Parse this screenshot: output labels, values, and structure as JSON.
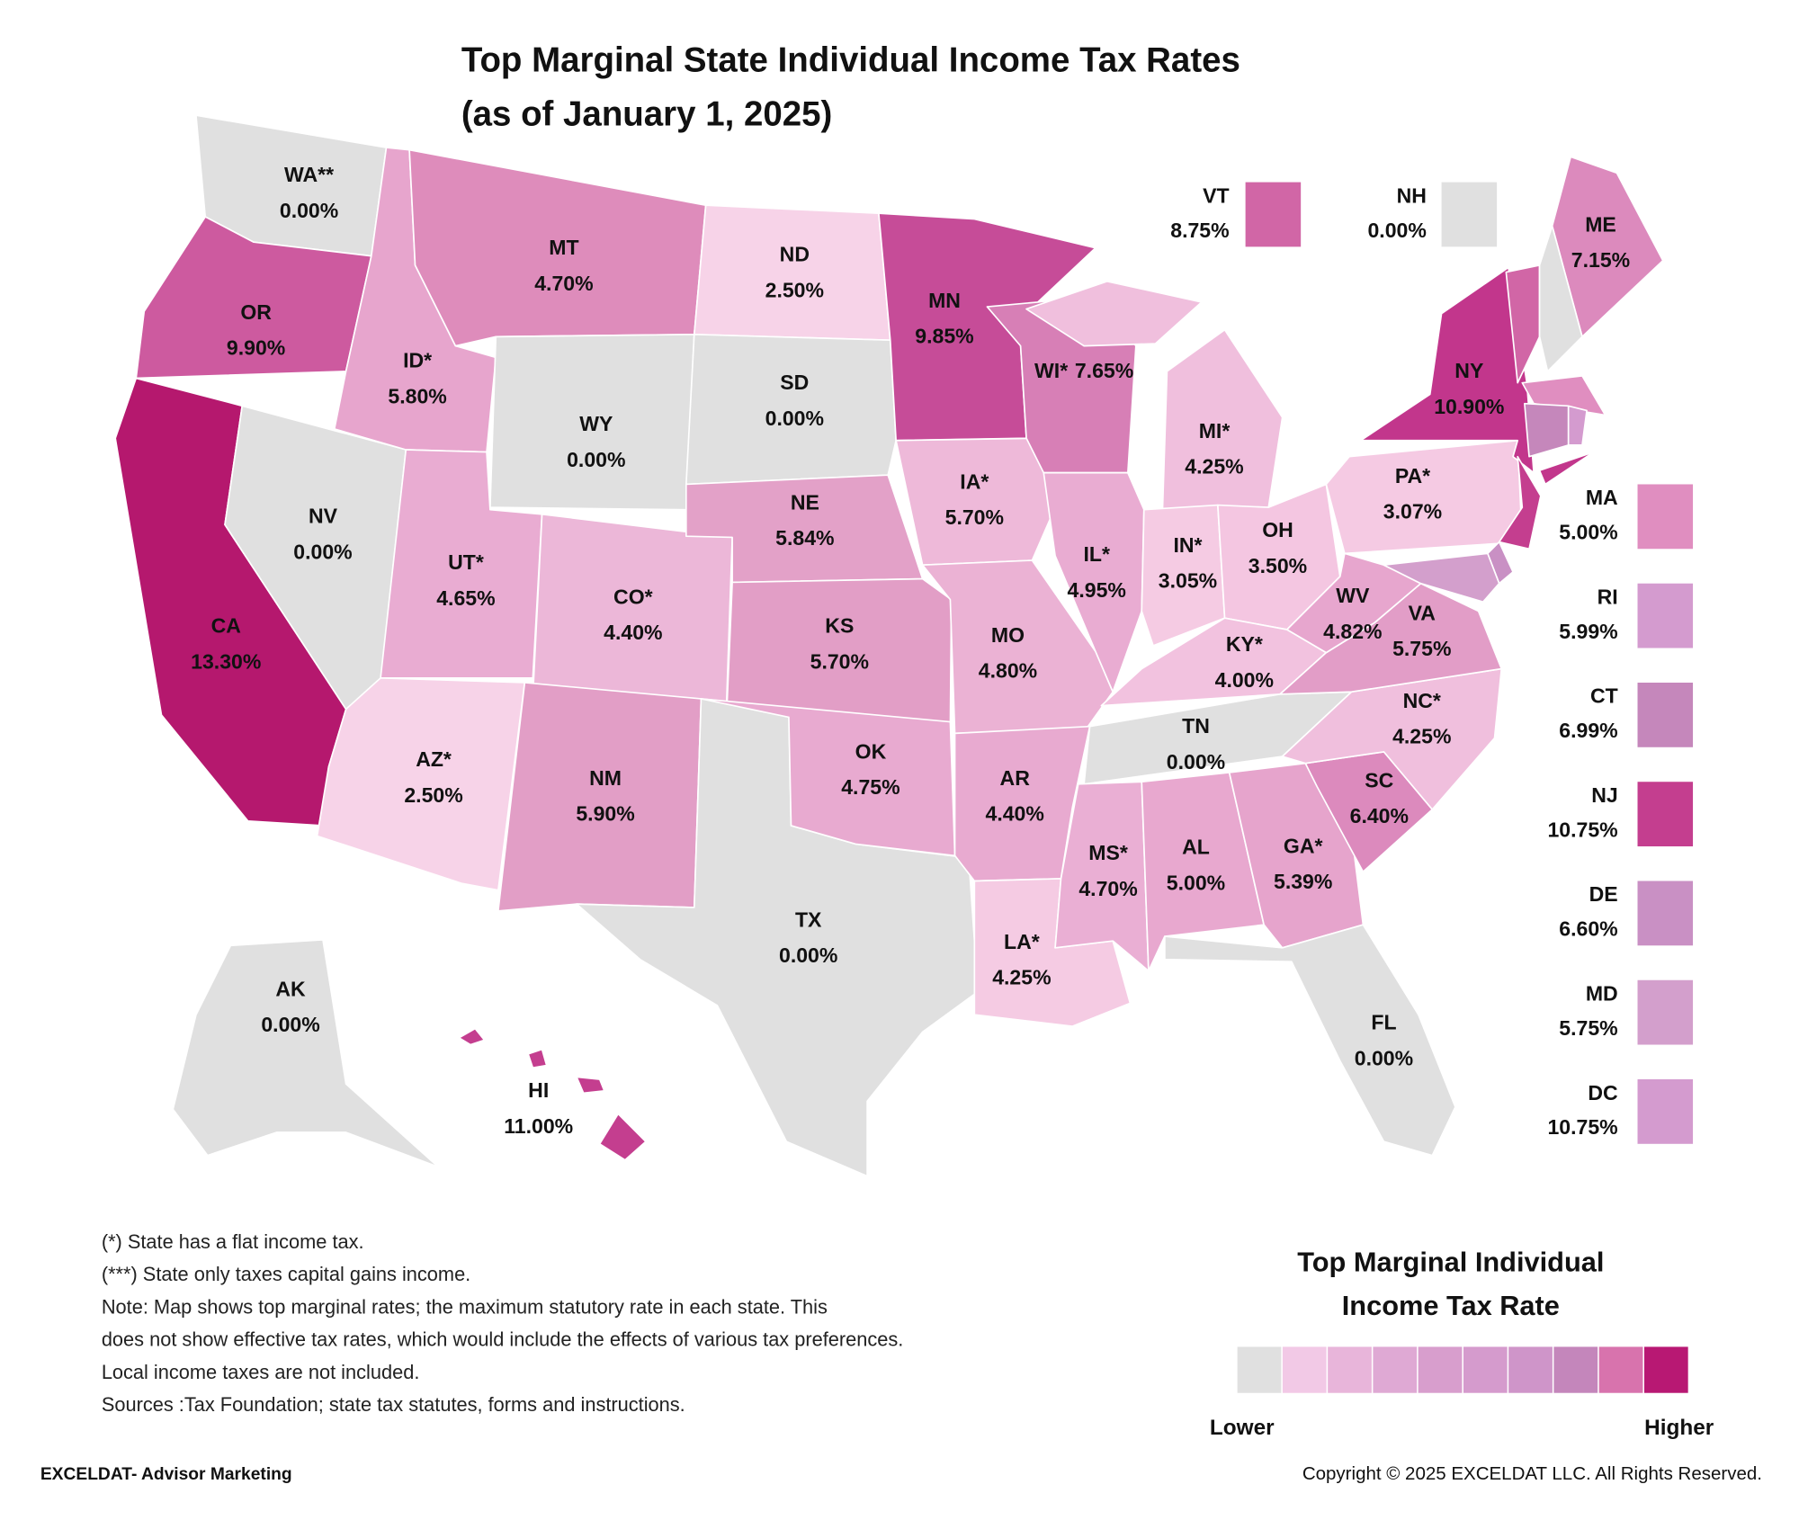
{
  "title": "Top Marginal State Individual Income Tax Rates",
  "subtitle": "(as of January 1, 2025)",
  "states": [
    {
      "abbr": "WA**",
      "value": 0,
      "label": "0.00%",
      "color": "#e0e0e0"
    },
    {
      "abbr": "OR",
      "value": 9.9,
      "label": "9.90%",
      "color": "#cd5a9f"
    },
    {
      "abbr": "CA",
      "value": 13.3,
      "label": "13.30%",
      "color": "#b5186e"
    },
    {
      "abbr": "NV",
      "value": 0,
      "label": "0.00%",
      "color": "#e0e0e0"
    },
    {
      "abbr": "ID*",
      "value": 5.8,
      "label": "5.80%",
      "color": "#e7a5cd"
    },
    {
      "abbr": "MT",
      "value": 4.7,
      "label": "4.70%",
      "color": "#de8cbb"
    },
    {
      "abbr": "WY",
      "value": 0,
      "label": "0.00%",
      "color": "#e0e0e0"
    },
    {
      "abbr": "ND",
      "value": 2.5,
      "label": "2.50%",
      "color": "#f7d3e8"
    },
    {
      "abbr": "SD",
      "value": 0,
      "label": "0.00%",
      "color": "#e0e0e0"
    },
    {
      "abbr": "UT*",
      "value": 4.65,
      "label": "4.65%",
      "color": "#e9acd2"
    },
    {
      "abbr": "CO*",
      "value": 4.4,
      "label": "4.40%",
      "color": "#ecb7d8"
    },
    {
      "abbr": "NE",
      "value": 5.84,
      "label": "5.84%",
      "color": "#e3a1c8"
    },
    {
      "abbr": "KS",
      "value": 5.7,
      "label": "5.70%",
      "color": "#e29ec6"
    },
    {
      "abbr": "AZ*",
      "value": 2.5,
      "label": "2.50%",
      "color": "#f7d3e8"
    },
    {
      "abbr": "NM",
      "value": 5.9,
      "label": "5.90%",
      "color": "#e29ec6"
    },
    {
      "abbr": "TX",
      "value": 0,
      "label": "0.00%",
      "color": "#e0e0e0"
    },
    {
      "abbr": "OK",
      "value": 4.75,
      "label": "4.75%",
      "color": "#e8aad0"
    },
    {
      "abbr": "MN",
      "value": 9.85,
      "label": "9.85%",
      "color": "#c64c98"
    },
    {
      "abbr": "IA*",
      "value": 5.7,
      "label": "5.70%",
      "color": "#eeb9d9"
    },
    {
      "abbr": "MO",
      "value": 4.8,
      "label": "4.80%",
      "color": "#ebb2d4"
    },
    {
      "abbr": "AR",
      "value": 4.4,
      "label": "4.40%",
      "color": "#e8aad0"
    },
    {
      "abbr": "LA*",
      "value": 4.25,
      "label": "4.25%",
      "color": "#f5cbe3"
    },
    {
      "abbr": "WI*",
      "value": 7.65,
      "label": "7.65%",
      "color": "#d77fb6"
    },
    {
      "abbr": "IL*",
      "value": 4.95,
      "label": "4.95%",
      "color": "#e9acd2"
    },
    {
      "abbr": "MI*",
      "value": 4.25,
      "label": "4.25%",
      "color": "#f0bfdd"
    },
    {
      "abbr": "IN*",
      "value": 3.05,
      "label": "3.05%",
      "color": "#f5cbe3"
    },
    {
      "abbr": "OH",
      "value": 3.5,
      "label": "3.50%",
      "color": "#f4c6e1"
    },
    {
      "abbr": "KY*",
      "value": 4,
      "label": "4.00%",
      "color": "#f2c2df"
    },
    {
      "abbr": "TN",
      "value": 0,
      "label": "0.00%",
      "color": "#e0e0e0"
    },
    {
      "abbr": "MS*",
      "value": 4.7,
      "label": "4.70%",
      "color": "#eaafd4"
    },
    {
      "abbr": "AL",
      "value": 5,
      "label": "5.00%",
      "color": "#e8a8cf"
    },
    {
      "abbr": "GA*",
      "value": 5.39,
      "label": "5.39%",
      "color": "#e6a4cc"
    },
    {
      "abbr": "FL",
      "value": 0,
      "label": "0.00%",
      "color": "#e0e0e0"
    },
    {
      "abbr": "SC",
      "value": 6.4,
      "label": "6.40%",
      "color": "#dc8abd"
    },
    {
      "abbr": "NC*",
      "value": 4.25,
      "label": "4.25%",
      "color": "#f0bfdd"
    },
    {
      "abbr": "VA",
      "value": 5.75,
      "label": "5.75%",
      "color": "#e29dc7"
    },
    {
      "abbr": "WV",
      "value": 4.82,
      "label": "4.82%",
      "color": "#e7a6ce"
    },
    {
      "abbr": "PA*",
      "value": 3.07,
      "label": "3.07%",
      "color": "#f5cae3"
    },
    {
      "abbr": "NY",
      "value": 10.9,
      "label": "10.90%",
      "color": "#c2368c"
    },
    {
      "abbr": "ME",
      "value": 7.15,
      "label": "7.15%",
      "color": "#dc8abd"
    },
    {
      "abbr": "AK",
      "value": 0,
      "label": "0.00%",
      "color": "#e0e0e0"
    },
    {
      "abbr": "HI",
      "value": 11,
      "label": "11.00%",
      "color": "#c43e8f"
    },
    {
      "abbr": "VT",
      "value": 8.75,
      "label": "8.75%",
      "color": "#d166a6"
    },
    {
      "abbr": "NH",
      "value": 0,
      "label": "0.00%",
      "color": "#e0e0e0"
    },
    {
      "abbr": "MA",
      "value": 5,
      "label": "5.00%",
      "color": "#e08ec0"
    },
    {
      "abbr": "RI",
      "value": 5.99,
      "label": "5.99%",
      "color": "#d49bcf"
    },
    {
      "abbr": "CT",
      "value": 6.99,
      "label": "6.99%",
      "color": "#c587bb"
    },
    {
      "abbr": "NJ",
      "value": 10.75,
      "label": "10.75%",
      "color": "#c43e8f"
    },
    {
      "abbr": "DE",
      "value": 6.6,
      "label": "6.60%",
      "color": "#c990c4"
    },
    {
      "abbr": "MD",
      "value": 5.75,
      "label": "5.75%",
      "color": "#d39fcc"
    },
    {
      "abbr": "DC",
      "value": 10.75,
      "label": "10.75%",
      "color": "#d49bcf"
    }
  ],
  "legend": {
    "title": [
      "Top Marginal Individual",
      "Income Tax Rate"
    ],
    "low": "Lower",
    "high": "Higher",
    "colors": [
      "#e0e0e0",
      "#f2c9e6",
      "#e8b5da",
      "#dfa9d4",
      "#d89ecd",
      "#d59bcd",
      "#cf95c9",
      "#c486bb",
      "#d873ad",
      "#b81873"
    ]
  },
  "notes": [
    "(*) State has a flat income tax.",
    "(***) State only taxes capital gains income.",
    "Note: Map shows top marginal rates; the maximum statutory rate in each state. This",
    "does not show effective tax rates, which would include the effects of various tax preferences.",
    "Local income taxes are not included.",
    "Sources :Tax Foundation; state tax statutes, forms and instructions."
  ],
  "footer": {
    "left": "EXCELDAT- Advisor Marketing",
    "right": "Copyright © 2025 EXCELDAT LLC. All Rights Reserved."
  }
}
